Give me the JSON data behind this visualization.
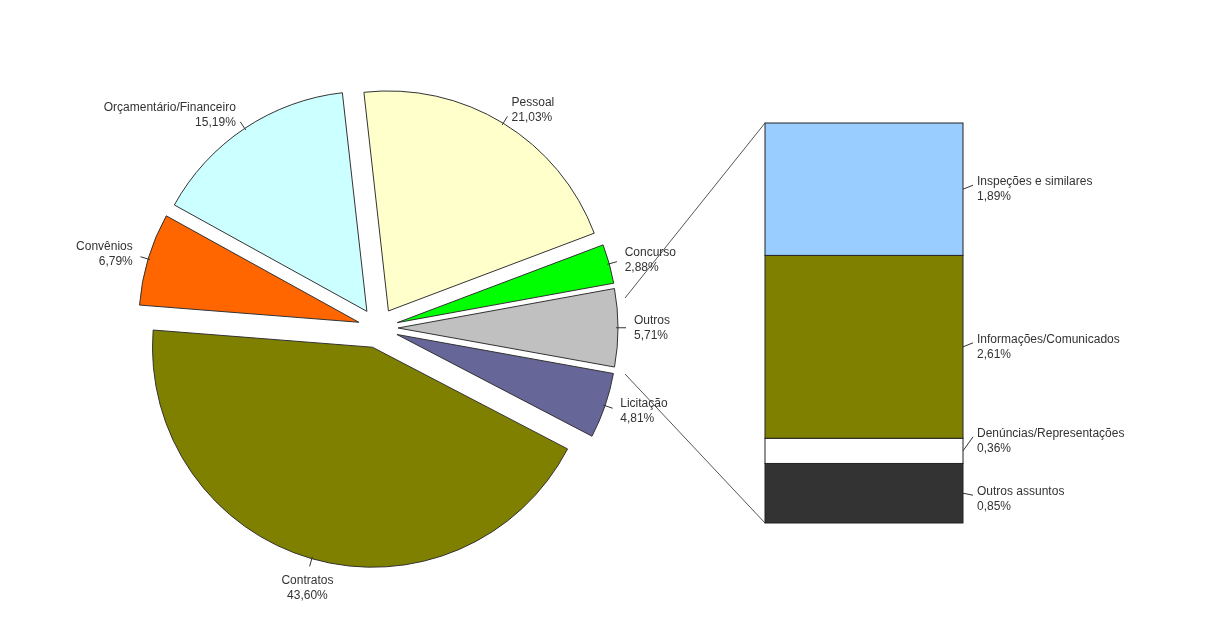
{
  "chart_data": [
    {
      "type": "pie",
      "categories": [
        "Pessoal",
        "Concurso",
        "Outros",
        "Licitação",
        "Contratos",
        "Convênios",
        "Orçamentário/Financeiro"
      ],
      "values": [
        21.03,
        2.88,
        5.71,
        4.81,
        43.6,
        6.79,
        15.19
      ],
      "colors": [
        "#ffffcc",
        "#00ff00",
        "#c0c0c0",
        "#666699",
        "#808000",
        "#ff6600",
        "#ccffff"
      ],
      "value_labels": [
        "21,03%",
        "2,88%",
        "5,71%",
        "4,81%",
        "43,60%",
        "6,79%",
        "15,19%"
      ]
    },
    {
      "type": "bar",
      "stacked": true,
      "categories": [
        null
      ],
      "series": [
        {
          "name": "Outros assuntos",
          "color": "#333333",
          "values": [
            0.85
          ],
          "value_labels": [
            "0,85%"
          ]
        },
        {
          "name": "Denúncias/Representações",
          "color": "#ffffff",
          "values": [
            0.36
          ],
          "value_labels": [
            "0,36%"
          ]
        },
        {
          "name": "Informações/Comunicados",
          "color": "#808000",
          "values": [
            2.61
          ],
          "value_labels": [
            "2,61%"
          ]
        },
        {
          "name": "Inspeções e similares",
          "color": "#99ccff",
          "values": [
            1.89
          ],
          "value_labels": [
            "1,89%"
          ]
        }
      ]
    }
  ]
}
